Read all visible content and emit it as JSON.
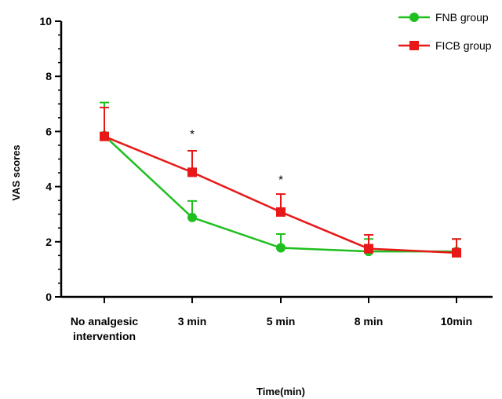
{
  "chart_data": {
    "type": "line",
    "categories": [
      [
        "No analgesic",
        "intervention"
      ],
      [
        "3 min"
      ],
      [
        "5 min"
      ],
      [
        "8 min"
      ],
      [
        "10min"
      ]
    ],
    "xlabel": "Time(min)",
    "ylabel": "VAS scores",
    "ylim": [
      0,
      10
    ],
    "yticks": [
      0,
      2,
      4,
      6,
      8,
      10
    ],
    "legend_position": "top-right",
    "series": [
      {
        "name": "FNB group",
        "color": "#1fbf1f",
        "marker": "circle",
        "values": [
          5.85,
          2.88,
          1.78,
          1.65,
          1.65
        ],
        "errors": [
          1.2,
          0.6,
          0.5,
          0.45,
          0.45
        ]
      },
      {
        "name": "FICB group",
        "color": "#e81818",
        "marker": "square",
        "values": [
          5.82,
          4.52,
          3.08,
          1.75,
          1.6
        ],
        "errors": [
          1.05,
          0.78,
          0.65,
          0.5,
          0.5
        ]
      }
    ],
    "annotations": [
      {
        "category_index": 1,
        "value": 6.05,
        "text": "*"
      },
      {
        "category_index": 2,
        "value": 4.4,
        "text": "*"
      }
    ]
  }
}
